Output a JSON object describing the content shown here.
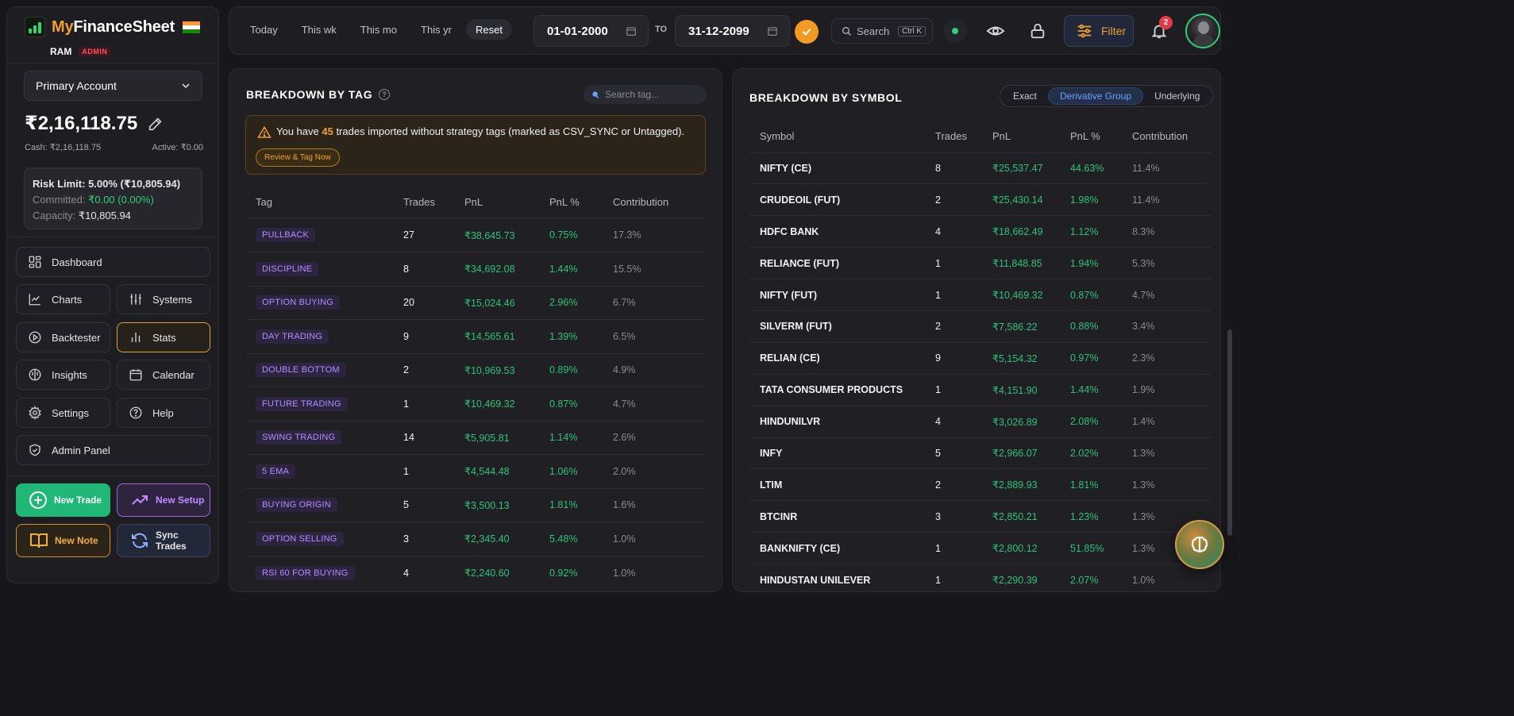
{
  "brand": {
    "my": "My",
    "rest": "FinanceSheet"
  },
  "user": {
    "name": "RAM",
    "role": "ADMIN"
  },
  "account": {
    "selected": "Primary Account",
    "balance": "₹2,16,118.75",
    "cash": "Cash: ₹2,16,118.75",
    "active": "Active: ₹0.00"
  },
  "risk": {
    "limit": "Risk Limit: 5.00% (₹10,805.94)",
    "committed_label": "Committed: ",
    "committed_value": "₹0.00 (0.00%)",
    "capacity_label": "Capacity: ",
    "capacity_value": "₹10,805.94"
  },
  "nav": {
    "dashboard": "Dashboard",
    "charts": "Charts",
    "systems": "Systems",
    "backtester": "Backtester",
    "stats": "Stats",
    "insights": "Insights",
    "calendar": "Calendar",
    "settings": "Settings",
    "help": "Help",
    "admin_panel": "Admin Panel"
  },
  "actions": {
    "new_trade": "New Trade",
    "new_setup": "New Setup",
    "new_note": "New Note",
    "sync_trades": "Sync Trades"
  },
  "topbar": {
    "ranges": [
      "Today",
      "This wk",
      "This mo",
      "This yr",
      "Reset"
    ],
    "date_from": "01-01-2000",
    "to_label": "TO",
    "date_to": "31-12-2099",
    "search_placeholder": "Search",
    "search_shortcut": "Ctrl K",
    "filter_label": "Filter",
    "notification_count": "2"
  },
  "tag_panel": {
    "title": "BREAKDOWN BY TAG",
    "search_placeholder": "Search tag...",
    "alert_prefix": "You have ",
    "alert_count": "45",
    "alert_suffix": " trades imported without strategy tags (marked as CSV_SYNC or Untagged).",
    "review_label": "Review & Tag Now",
    "columns": [
      "Tag",
      "Trades",
      "PnL",
      "PnL %",
      "Contribution"
    ],
    "rows": [
      {
        "tag": "PULLBACK",
        "trades": "27",
        "pnl": "₹38,645.73",
        "pnl_pct": "0.75%",
        "contribution": "17.3%"
      },
      {
        "tag": "DISCIPLINE",
        "trades": "8",
        "pnl": "₹34,692.08",
        "pnl_pct": "1.44%",
        "contribution": "15.5%"
      },
      {
        "tag": "OPTION BUYING",
        "trades": "20",
        "pnl": "₹15,024.46",
        "pnl_pct": "2.96%",
        "contribution": "6.7%"
      },
      {
        "tag": "DAY TRADING",
        "trades": "9",
        "pnl": "₹14,565.61",
        "pnl_pct": "1.39%",
        "contribution": "6.5%"
      },
      {
        "tag": "DOUBLE BOTTOM",
        "trades": "2",
        "pnl": "₹10,969.53",
        "pnl_pct": "0.89%",
        "contribution": "4.9%"
      },
      {
        "tag": "FUTURE TRADING",
        "trades": "1",
        "pnl": "₹10,469.32",
        "pnl_pct": "0.87%",
        "contribution": "4.7%"
      },
      {
        "tag": "SWING TRADING",
        "trades": "14",
        "pnl": "₹5,905.81",
        "pnl_pct": "1.14%",
        "contribution": "2.6%"
      },
      {
        "tag": "5 EMA",
        "trades": "1",
        "pnl": "₹4,544.48",
        "pnl_pct": "1.06%",
        "contribution": "2.0%"
      },
      {
        "tag": "BUYING ORIGIN",
        "trades": "5",
        "pnl": "₹3,500.13",
        "pnl_pct": "1.81%",
        "contribution": "1.6%"
      },
      {
        "tag": "OPTION SELLING",
        "trades": "3",
        "pnl": "₹2,345.40",
        "pnl_pct": "5.48%",
        "contribution": "1.0%"
      },
      {
        "tag": "RSI 60 FOR BUYING",
        "trades": "4",
        "pnl": "₹2,240.60",
        "pnl_pct": "0.92%",
        "contribution": "1.0%"
      }
    ]
  },
  "symbol_panel": {
    "title": "BREAKDOWN BY SYMBOL",
    "modes": [
      "Exact",
      "Derivative Group",
      "Underlying"
    ],
    "active_mode": "Derivative Group",
    "columns": [
      "Symbol",
      "Trades",
      "PnL",
      "PnL %",
      "Contribution"
    ],
    "rows": [
      {
        "symbol": "NIFTY (CE)",
        "trades": "8",
        "pnl": "₹25,537.47",
        "pnl_pct": "44.63%",
        "contribution": "11.4%"
      },
      {
        "symbol": "CRUDEOIL (FUT)",
        "trades": "2",
        "pnl": "₹25,430.14",
        "pnl_pct": "1.98%",
        "contribution": "11.4%"
      },
      {
        "symbol": "HDFC BANK",
        "trades": "4",
        "pnl": "₹18,662.49",
        "pnl_pct": "1.12%",
        "contribution": "8.3%"
      },
      {
        "symbol": "RELIANCE (FUT)",
        "trades": "1",
        "pnl": "₹11,848.85",
        "pnl_pct": "1.94%",
        "contribution": "5.3%"
      },
      {
        "symbol": "NIFTY (FUT)",
        "trades": "1",
        "pnl": "₹10,469.32",
        "pnl_pct": "0.87%",
        "contribution": "4.7%"
      },
      {
        "symbol": "SILVERM (FUT)",
        "trades": "2",
        "pnl": "₹7,586.22",
        "pnl_pct": "0.88%",
        "contribution": "3.4%"
      },
      {
        "symbol": "RELIAN (CE)",
        "trades": "9",
        "pnl": "₹5,154.32",
        "pnl_pct": "0.97%",
        "contribution": "2.3%"
      },
      {
        "symbol": "TATA CONSUMER PRODUCTS",
        "trades": "1",
        "pnl": "₹4,151.90",
        "pnl_pct": "1.44%",
        "contribution": "1.9%"
      },
      {
        "symbol": "HINDUNILVR",
        "trades": "4",
        "pnl": "₹3,026.89",
        "pnl_pct": "2.08%",
        "contribution": "1.4%"
      },
      {
        "symbol": "INFY",
        "trades": "5",
        "pnl": "₹2,966.07",
        "pnl_pct": "2.02%",
        "contribution": "1.3%"
      },
      {
        "symbol": "LTIM",
        "trades": "2",
        "pnl": "₹2,889.93",
        "pnl_pct": "1.81%",
        "contribution": "1.3%"
      },
      {
        "symbol": "BTCINR",
        "trades": "3",
        "pnl": "₹2,850.21",
        "pnl_pct": "1.23%",
        "contribution": "1.3%"
      },
      {
        "symbol": "BANKNIFTY (CE)",
        "trades": "1",
        "pnl": "₹2,800.12",
        "pnl_pct": "51.85%",
        "contribution": "1.3%"
      },
      {
        "symbol": "HINDUSTAN UNILEVER",
        "trades": "1",
        "pnl": "₹2,290.39",
        "pnl_pct": "2.07%",
        "contribution": "1.0%"
      }
    ]
  },
  "colors": {
    "accent_orange": "#f0a030",
    "positive_green": "#2fc27a",
    "tag_purple": "#b38cff",
    "link_blue": "#6aa0ff",
    "badge_red": "#e23b47"
  }
}
